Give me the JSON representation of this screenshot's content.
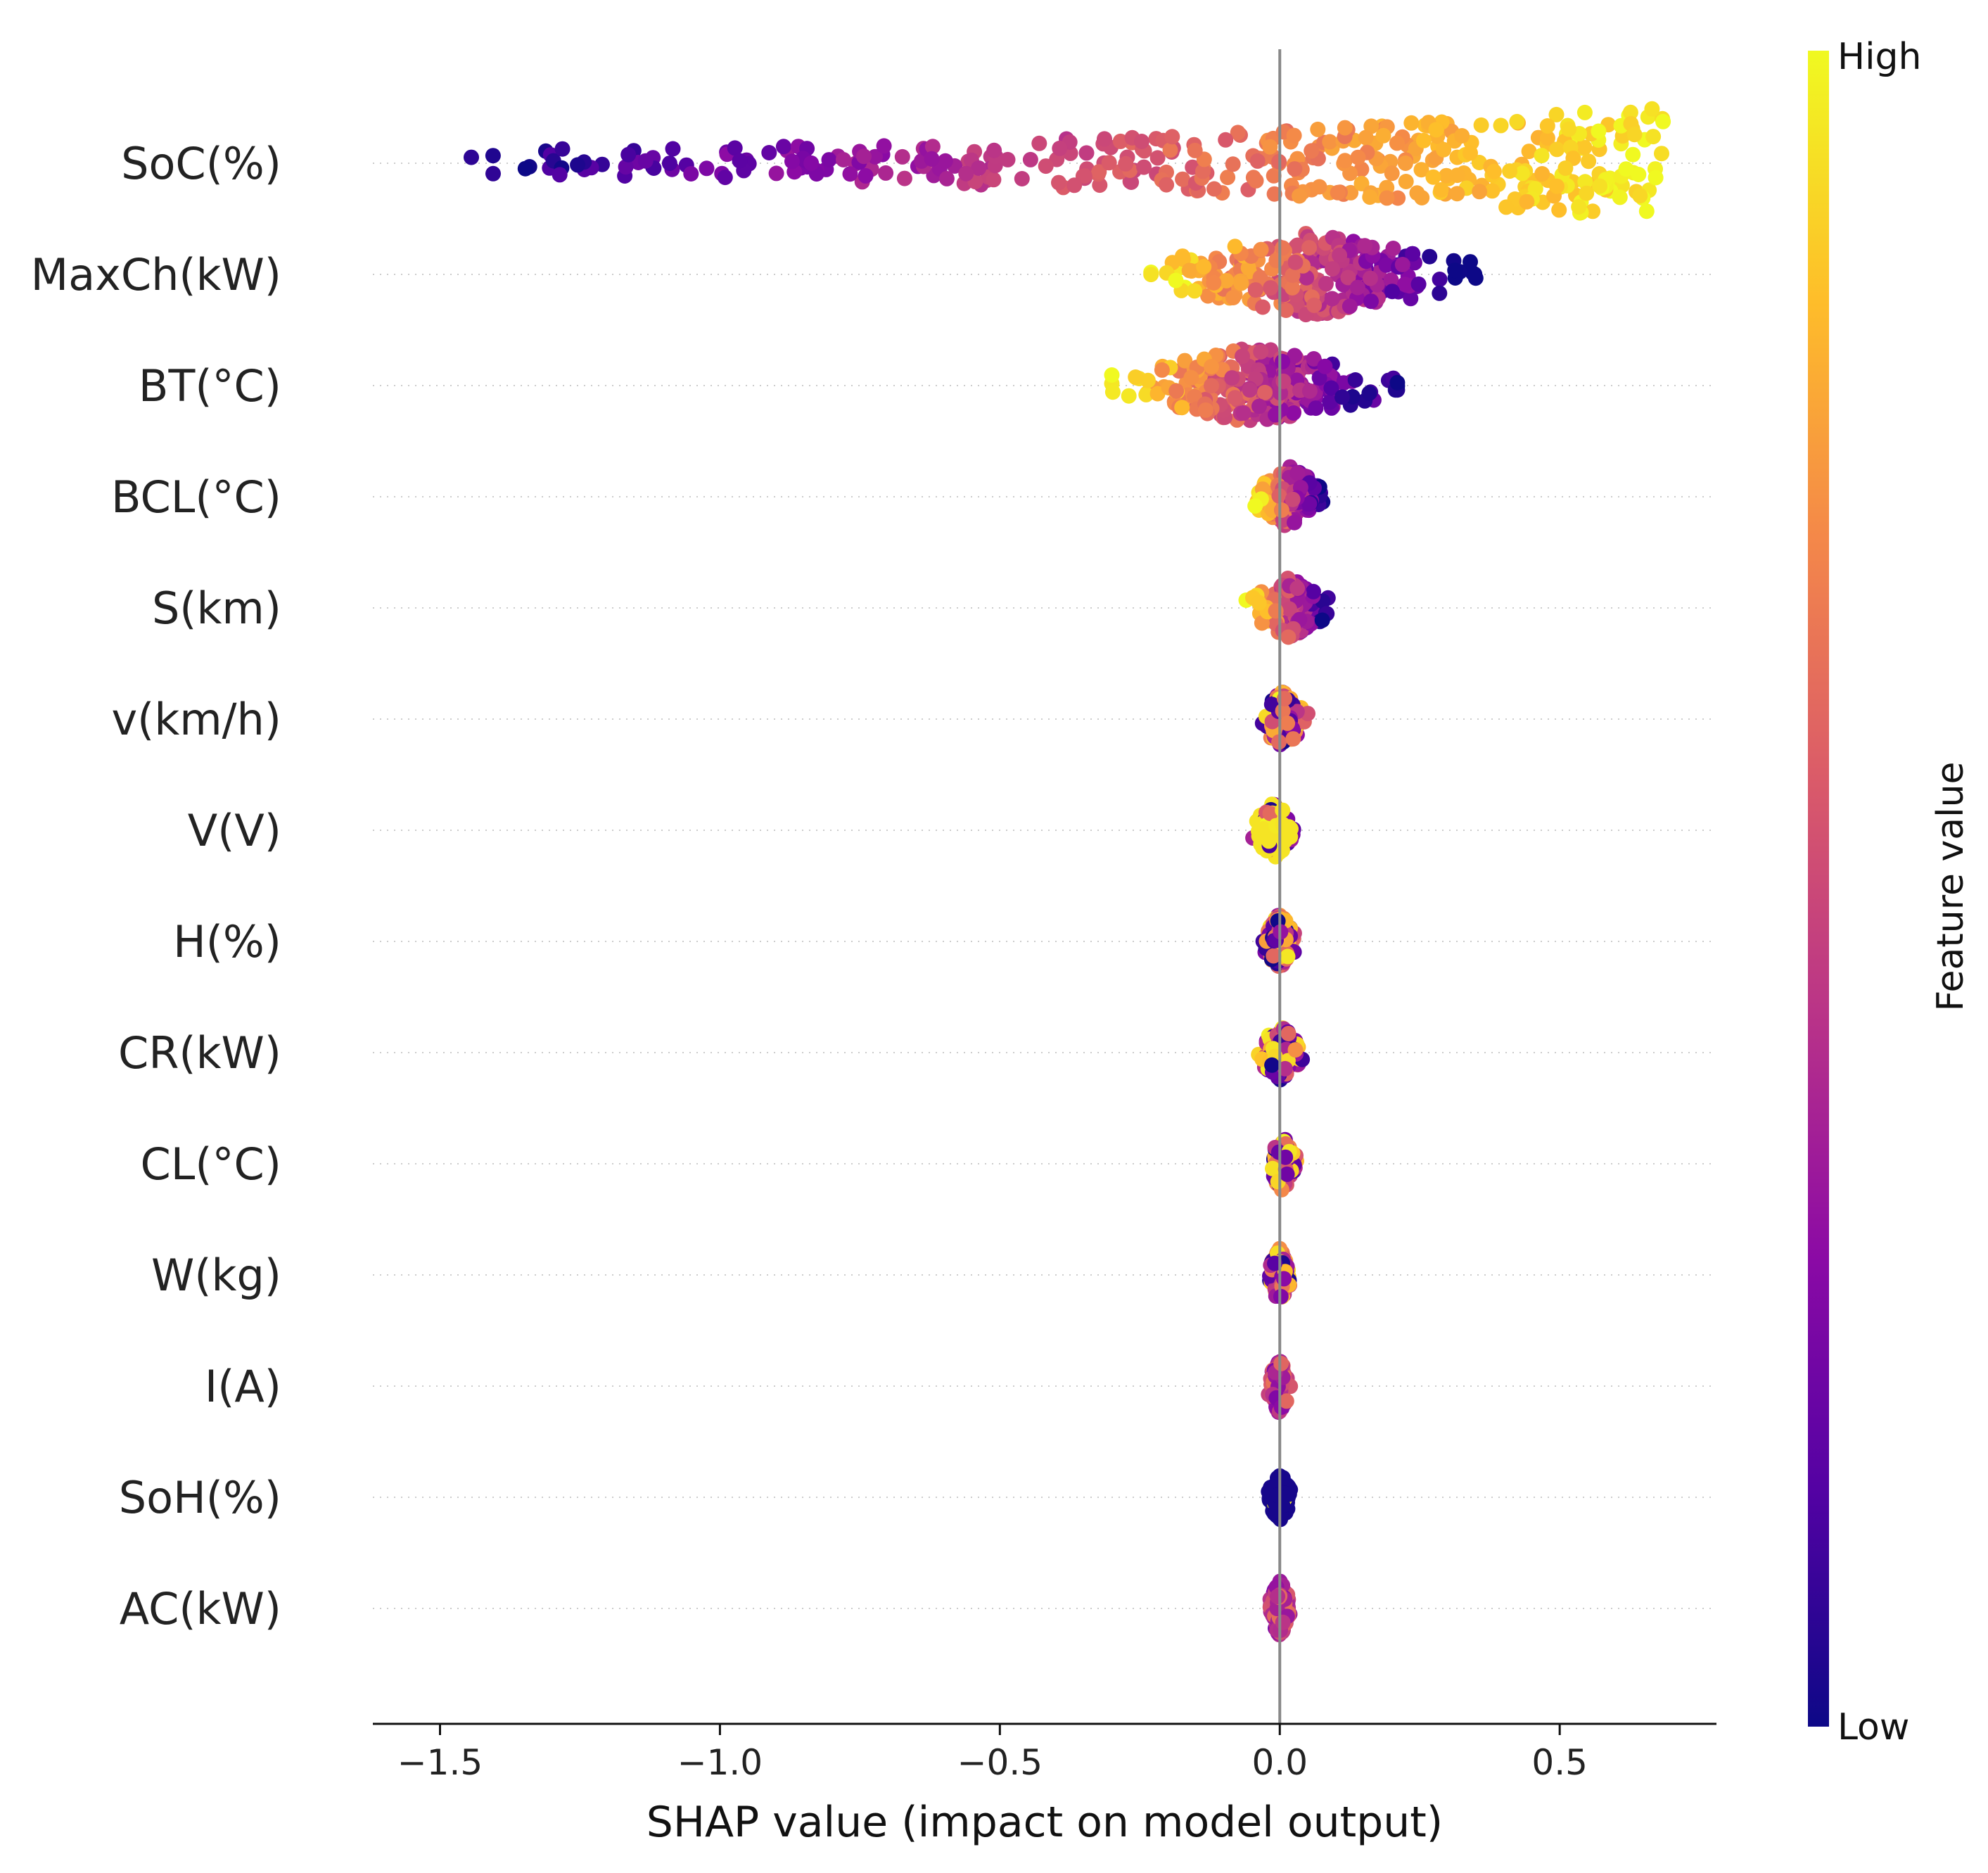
{
  "chart_data": {
    "type": "scatter",
    "subtype": "shap-beeswarm-summary",
    "xlabel": "SHAP value (impact on model output)",
    "xlim": [
      -1.62,
      0.78
    ],
    "xticks": [
      -1.5,
      -1.0,
      -0.5,
      0.0,
      0.5
    ],
    "xtick_labels": [
      "−1.5",
      "−1.0",
      "−0.5",
      "0.0",
      "0.5"
    ],
    "zero_line": 0.0,
    "grid": "dotted horizontal per feature",
    "colorbar": {
      "label": "Feature value",
      "high_label": "High",
      "low_label": "Low",
      "colormap": "plasma",
      "colors": [
        "#0d0887",
        "#5302a3",
        "#8b0aa5",
        "#b83289",
        "#db5c68",
        "#f48849",
        "#febd2a",
        "#f0f921"
      ]
    },
    "features": [
      {
        "name": "SoC(%)",
        "shap_min": -1.45,
        "shap_max": 0.69,
        "color_trend": "low-left-high-right",
        "max_width": 0.08
      },
      {
        "name": "MaxCh(kW)",
        "shap_min": -0.23,
        "shap_max": 0.35,
        "color_trend": "high-left-low-right",
        "max_width": 0.06
      },
      {
        "name": "BT(°C)",
        "shap_min": -0.3,
        "shap_max": 0.21,
        "color_trend": "high-left-low-right",
        "max_width": 0.055
      },
      {
        "name": "BCL(°C)",
        "shap_min": -0.05,
        "shap_max": 0.08,
        "color_trend": "high-left-low-right",
        "max_width": 0.045
      },
      {
        "name": "S(km)",
        "shap_min": -0.06,
        "shap_max": 0.09,
        "color_trend": "high-left-low-right",
        "max_width": 0.045
      },
      {
        "name": "v(km/h)",
        "shap_min": -0.04,
        "shap_max": 0.05,
        "color_trend": "mixed",
        "max_width": 0.04
      },
      {
        "name": "V(V)",
        "shap_min": -0.05,
        "shap_max": 0.03,
        "color_trend": "mostly-high",
        "max_width": 0.04
      },
      {
        "name": "H(%)",
        "shap_min": -0.03,
        "shap_max": 0.03,
        "color_trend": "mixed",
        "max_width": 0.04
      },
      {
        "name": "CR(kW)",
        "shap_min": -0.04,
        "shap_max": 0.04,
        "color_trend": "mixed",
        "max_width": 0.04
      },
      {
        "name": "CL(°C)",
        "shap_min": -0.02,
        "shap_max": 0.03,
        "color_trend": "mixed",
        "max_width": 0.04
      },
      {
        "name": "W(kg)",
        "shap_min": -0.02,
        "shap_max": 0.02,
        "color_trend": "mixed",
        "max_width": 0.04
      },
      {
        "name": "I(A)",
        "shap_min": -0.02,
        "shap_max": 0.02,
        "color_trend": "mostly-mid",
        "max_width": 0.04
      },
      {
        "name": "SoH(%)",
        "shap_min": -0.02,
        "shap_max": 0.02,
        "color_trend": "mostly-low",
        "max_width": 0.035
      },
      {
        "name": "AC(kW)",
        "shap_min": -0.02,
        "shap_max": 0.02,
        "color_trend": "mostly-mid",
        "max_width": 0.04
      }
    ]
  }
}
